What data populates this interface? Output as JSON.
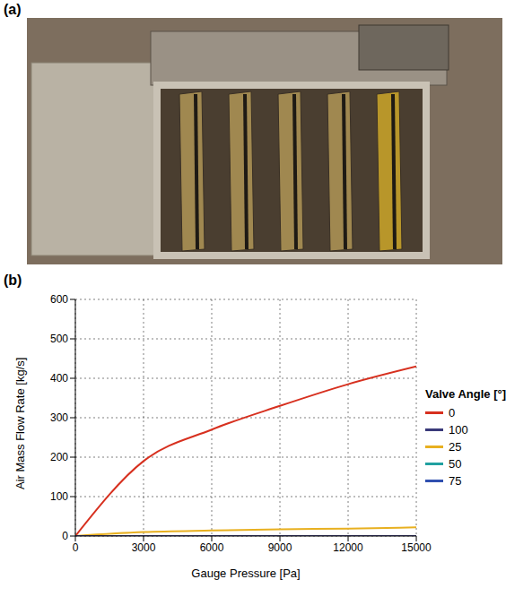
{
  "panel_labels": [
    "(a)",
    "(b)"
  ],
  "chart_data": {
    "type": "line",
    "x_label": "Gauge Pressure [Pa]",
    "y_label": "Air Mass Flow Rate [kg/s]",
    "legend_title": "Valve Angle [°]",
    "x": [
      0,
      3000,
      6000,
      9000,
      12000,
      15000
    ],
    "xlim": [
      0,
      15000
    ],
    "xticks": [
      0,
      3000,
      6000,
      9000,
      12000,
      15000
    ],
    "ylim": [
      0,
      600
    ],
    "yticks": [
      0,
      100,
      200,
      300,
      400,
      500,
      600
    ],
    "grid": true,
    "legend": "right",
    "series": [
      {
        "name": "0",
        "color": "#d7301f",
        "values": [
          0,
          190,
          270,
          330,
          385,
          430
        ]
      },
      {
        "name": "25",
        "color": "#e8b020",
        "values": [
          0,
          10,
          14,
          17,
          19,
          22
        ]
      },
      {
        "name": "50",
        "color": "#20a0a0",
        "values": [
          0,
          0,
          0,
          0,
          0,
          0
        ]
      },
      {
        "name": "75",
        "color": "#3050b0",
        "values": [
          0,
          0,
          0,
          0,
          0,
          0
        ]
      },
      {
        "name": "100",
        "color": "#3a3a7a",
        "values": [
          0,
          0,
          0,
          0,
          0,
          0
        ]
      }
    ]
  }
}
